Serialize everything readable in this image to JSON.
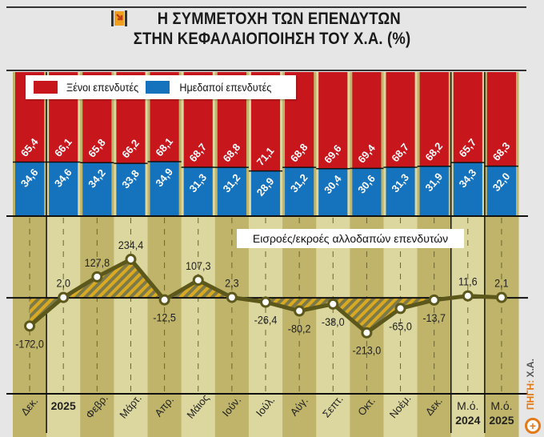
{
  "header": {
    "title_line1": "Η ΣΥΜΜΕΤΟΧΗ ΤΩΝ ΕΠΕΝΔΥΤΩΝ",
    "title_line2": "ΣΤΗΝ ΚΕΦΑΛΑΙΟΠΟΙΗΣΗ ΤΟΥ Χ.Α. (%)",
    "logo_icon": "orange-arrow-icon"
  },
  "source": {
    "label": "ΠΗΓΗ:",
    "value": "Χ.Α."
  },
  "colors": {
    "foreign": "#c8161d",
    "domestic": "#1572bd",
    "line": "#5c581c",
    "band_dark": "#bfb46a",
    "band_light": "#dcd79f"
  },
  "chart_data": [
    {
      "type": "bar",
      "stacked": true,
      "title": "Η ΣΥΜΜΕΤΟΧΗ ΤΩΝ ΕΠΕΝΔΥΤΩΝ ΣΤΗΝ ΚΕΦΑΛΑΙΟΠΟΙΗΣΗ ΤΟΥ Χ.Α. (%)",
      "categories": [
        "Δεκ.",
        "2025",
        "Φεβρ.",
        "Μάρτ.",
        "Απρ.",
        "Μάιος",
        "Ιούν.",
        "Ιούλ.",
        "Αύγ.",
        "Σεπτ.",
        "Οκτ.",
        "Νοέμ.",
        "Δεκ.",
        "Μ.ό. 2024",
        "Μ.ό. 2025"
      ],
      "legend_position": "top-left",
      "series": [
        {
          "name": "Ξένοι επενδυτές",
          "labels": [
            "65,4",
            "66,1",
            "65,8",
            "66,2",
            "68,1",
            "68,7",
            "68,8",
            "71,1",
            "68,8",
            "69,6",
            "69,4",
            "68,7",
            "68,2",
            "65,7",
            "68,3"
          ],
          "values": [
            65.4,
            66.1,
            65.8,
            66.2,
            68.1,
            68.7,
            68.8,
            71.1,
            68.8,
            69.6,
            69.4,
            68.7,
            68.2,
            65.7,
            68.3
          ]
        },
        {
          "name": "Ημεδαποί επενδυτές",
          "labels": [
            "34,6",
            "34,6",
            "34,2",
            "33,8",
            "34,9",
            "31,3",
            "31,2",
            "28,9",
            "31,2",
            "30,4",
            "30,6",
            "31,3",
            "31,9",
            "34,3",
            "32,0"
          ],
          "values": [
            34.6,
            34.6,
            34.2,
            33.8,
            34.9,
            31.3,
            31.2,
            28.9,
            31.2,
            30.4,
            30.6,
            31.3,
            31.9,
            34.3,
            32.0
          ]
        }
      ]
    },
    {
      "type": "line",
      "title": "Εισροές/εκροές αλλοδαπών επενδυτών",
      "categories": [
        "Δεκ.",
        "2025",
        "Φεβρ.",
        "Μάρτ.",
        "Απρ.",
        "Μάιος",
        "Ιούν.",
        "Ιούλ.",
        "Αύγ.",
        "Σεπτ.",
        "Οκτ.",
        "Νοέμ.",
        "Δεκ.",
        "Μ.ό. 2024",
        "Μ.ό. 2025"
      ],
      "values": [
        -172.0,
        2.0,
        127.8,
        234.4,
        -12.5,
        107.3,
        2.3,
        -26.4,
        -80.2,
        -38.0,
        -213.0,
        -65.0,
        -13.7,
        11.6,
        2.1
      ],
      "labels": [
        "-172,0",
        "2,0",
        "127,8",
        "234,4",
        "-12,5",
        "107,3",
        "2,3",
        "-26,4",
        "-80,2",
        "-38,0",
        "-213,0",
        "-65,0",
        "-13,7",
        "11,6",
        "2,1"
      ],
      "ylim": [
        -585,
        498
      ],
      "zero_line": true
    }
  ],
  "xaxis": {
    "labels": [
      {
        "line1": "Δεκ.",
        "line2": "",
        "style": "rotated"
      },
      {
        "line1": "2025",
        "line2": "",
        "style": "bold"
      },
      {
        "line1": "Φεβρ.",
        "line2": "",
        "style": "rotated"
      },
      {
        "line1": "Μάρτ.",
        "line2": "",
        "style": "rotated"
      },
      {
        "line1": "Απρ.",
        "line2": "",
        "style": "rotated"
      },
      {
        "line1": "Μάιος",
        "line2": "",
        "style": "rotated"
      },
      {
        "line1": "Ιούν.",
        "line2": "",
        "style": "rotated"
      },
      {
        "line1": "Ιούλ.",
        "line2": "",
        "style": "rotated"
      },
      {
        "line1": "Αύγ.",
        "line2": "",
        "style": "rotated"
      },
      {
        "line1": "Σεπτ.",
        "line2": "",
        "style": "rotated"
      },
      {
        "line1": "Οκτ.",
        "line2": "",
        "style": "rotated"
      },
      {
        "line1": "Νοέμ.",
        "line2": "",
        "style": "rotated"
      },
      {
        "line1": "Δεκ.",
        "line2": "",
        "style": "rotated"
      },
      {
        "line1": "Μ.ό.",
        "line2": "2024",
        "style": "stacked"
      },
      {
        "line1": "Μ.ό.",
        "line2": "2025",
        "style": "stacked"
      }
    ]
  }
}
